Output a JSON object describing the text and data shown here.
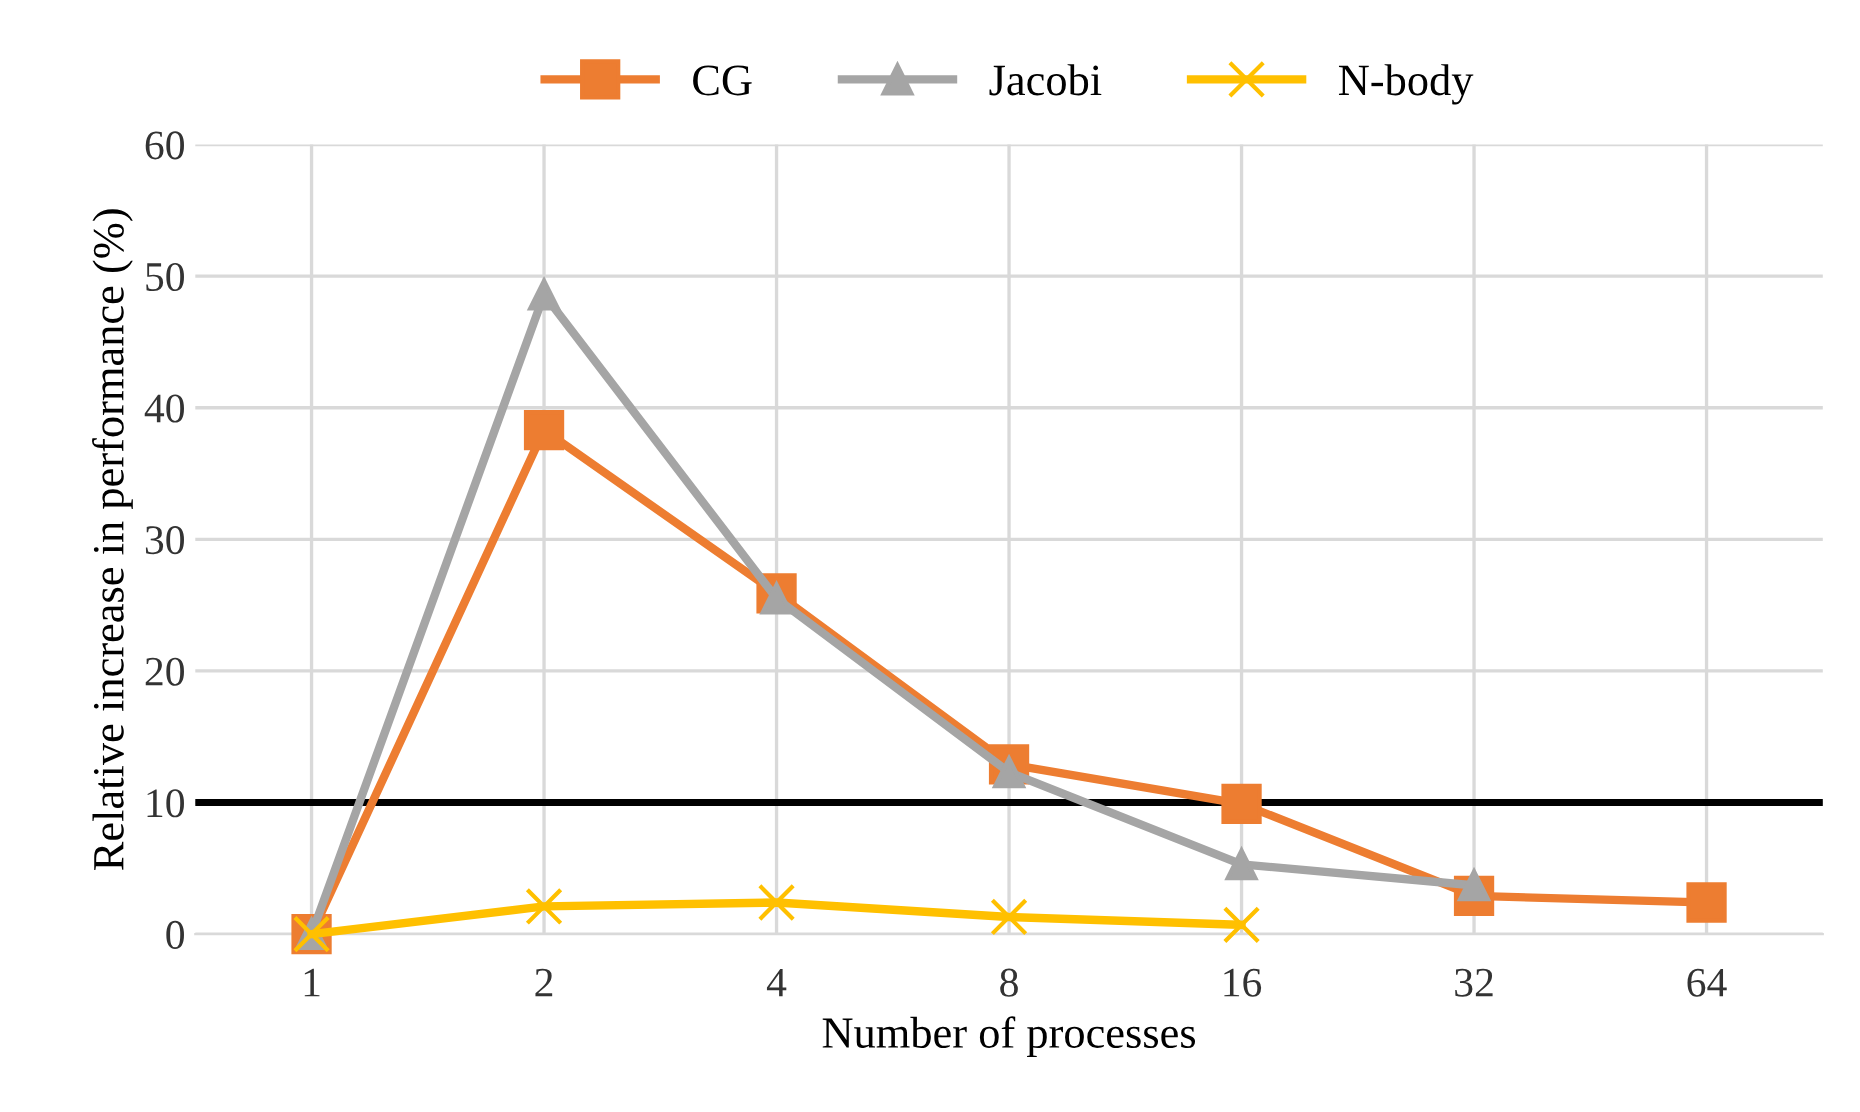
{
  "chart_data": {
    "type": "line",
    "xlabel": "Number of processes",
    "ylabel": "Relative increase in performance (%)",
    "categories": [
      "1",
      "2",
      "4",
      "8",
      "16",
      "32",
      "64"
    ],
    "series": [
      {
        "name": "CG",
        "color": "#ed7d31",
        "marker": "square",
        "values": [
          0,
          38.3,
          25.9,
          12.9,
          9.9,
          2.9,
          2.4
        ]
      },
      {
        "name": "Jacobi",
        "color": "#a5a5a5",
        "marker": "triangle",
        "values": [
          0,
          48.6,
          25.5,
          12.3,
          5.3,
          3.7,
          null
        ]
      },
      {
        "name": "N-body",
        "color": "#ffc000",
        "marker": "cross",
        "values": [
          0,
          2.1,
          2.4,
          1.3,
          0.7,
          null,
          null
        ]
      }
    ],
    "ylim": [
      0,
      60
    ],
    "yticks": [
      0,
      10,
      20,
      30,
      40,
      50,
      60
    ],
    "grid": true,
    "legend": "top",
    "ref_lines": [
      {
        "axis": "y",
        "value": 10,
        "color": "#000000"
      }
    ]
  }
}
